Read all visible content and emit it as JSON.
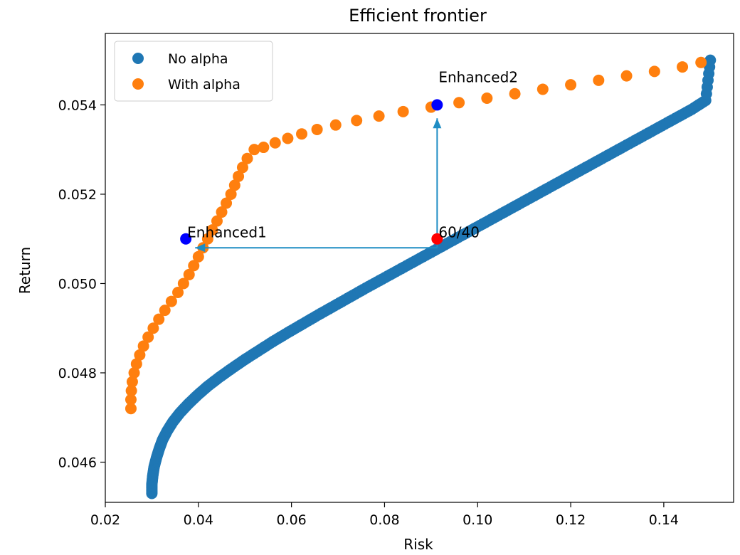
{
  "chart_data": {
    "type": "scatter",
    "title": "Efficient frontier",
    "xlabel": "Risk",
    "ylabel": "Return",
    "xlim": [
      0.02,
      0.155
    ],
    "ylim": [
      0.0451,
      0.0556
    ],
    "xticks": [
      {
        "value": 0.02,
        "label": "0.02"
      },
      {
        "value": 0.04,
        "label": "0.04"
      },
      {
        "value": 0.06,
        "label": "0.06"
      },
      {
        "value": 0.08,
        "label": "0.08"
      },
      {
        "value": 0.1,
        "label": "0.10"
      },
      {
        "value": 0.12,
        "label": "0.12"
      },
      {
        "value": 0.14,
        "label": "0.14"
      }
    ],
    "yticks": [
      {
        "value": 0.046,
        "label": "0.046"
      },
      {
        "value": 0.048,
        "label": "0.048"
      },
      {
        "value": 0.05,
        "label": "0.050"
      },
      {
        "value": 0.052,
        "label": "0.052"
      },
      {
        "value": 0.054,
        "label": "0.054"
      }
    ],
    "grid": false,
    "legend_position": "top-left",
    "series": [
      {
        "name": "No alpha",
        "color": "#1f77b4",
        "points": [
          [
            0.03,
            0.0453
          ],
          [
            0.03,
            0.0455
          ],
          [
            0.0302,
            0.0457
          ],
          [
            0.0305,
            0.0459
          ],
          [
            0.031,
            0.0461
          ],
          [
            0.0316,
            0.0463
          ],
          [
            0.0323,
            0.0465
          ],
          [
            0.0333,
            0.0467
          ],
          [
            0.0345,
            0.0469
          ],
          [
            0.036,
            0.0471
          ],
          [
            0.0378,
            0.0473
          ],
          [
            0.0398,
            0.0475
          ],
          [
            0.042,
            0.0477
          ],
          [
            0.0445,
            0.0479
          ],
          [
            0.0472,
            0.0481
          ],
          [
            0.05,
            0.0483
          ],
          [
            0.053,
            0.0485
          ],
          [
            0.056,
            0.0487
          ],
          [
            0.0592,
            0.0489
          ],
          [
            0.0625,
            0.0491
          ],
          [
            0.0658,
            0.0493
          ],
          [
            0.0692,
            0.0495
          ],
          [
            0.0726,
            0.0497
          ],
          [
            0.076,
            0.0499
          ],
          [
            0.0795,
            0.0501
          ],
          [
            0.083,
            0.0503
          ],
          [
            0.0865,
            0.0505
          ],
          [
            0.09,
            0.0507
          ],
          [
            0.0935,
            0.0509
          ],
          [
            0.097,
            0.0511
          ],
          [
            0.1005,
            0.0513
          ],
          [
            0.104,
            0.0515
          ],
          [
            0.1075,
            0.0517
          ],
          [
            0.111,
            0.0519
          ],
          [
            0.1145,
            0.0521
          ],
          [
            0.118,
            0.0523
          ],
          [
            0.1215,
            0.0525
          ],
          [
            0.125,
            0.0527
          ],
          [
            0.1285,
            0.0529
          ],
          [
            0.132,
            0.0531
          ],
          [
            0.1355,
            0.0533
          ],
          [
            0.139,
            0.0535
          ],
          [
            0.1425,
            0.0537
          ],
          [
            0.146,
            0.0539
          ],
          [
            0.149,
            0.0541
          ],
          [
            0.15,
            0.055
          ]
        ],
        "dense": true
      },
      {
        "name": "With alpha",
        "color": "#ff7f0e",
        "points": [
          [
            0.0255,
            0.0472
          ],
          [
            0.0255,
            0.0474
          ],
          [
            0.0256,
            0.0476
          ],
          [
            0.0258,
            0.0478
          ],
          [
            0.0262,
            0.048
          ],
          [
            0.0267,
            0.0482
          ],
          [
            0.0274,
            0.0484
          ],
          [
            0.0282,
            0.0486
          ],
          [
            0.0292,
            0.0488
          ],
          [
            0.0303,
            0.049
          ],
          [
            0.0315,
            0.0492
          ],
          [
            0.0328,
            0.0494
          ],
          [
            0.0342,
            0.0496
          ],
          [
            0.0356,
            0.0498
          ],
          [
            0.0368,
            0.05
          ],
          [
            0.038,
            0.0502
          ],
          [
            0.039,
            0.0504
          ],
          [
            0.04,
            0.0506
          ],
          [
            0.041,
            0.0508
          ],
          [
            0.042,
            0.051
          ],
          [
            0.043,
            0.0512
          ],
          [
            0.044,
            0.0514
          ],
          [
            0.045,
            0.0516
          ],
          [
            0.046,
            0.0518
          ],
          [
            0.047,
            0.052
          ],
          [
            0.0478,
            0.0522
          ],
          [
            0.0486,
            0.0524
          ],
          [
            0.0495,
            0.0526
          ],
          [
            0.0505,
            0.0528
          ],
          [
            0.052,
            0.053
          ],
          [
            0.054,
            0.05305
          ],
          [
            0.0565,
            0.05315
          ],
          [
            0.0592,
            0.05325
          ],
          [
            0.0622,
            0.05335
          ],
          [
            0.0655,
            0.05345
          ],
          [
            0.0695,
            0.05355
          ],
          [
            0.074,
            0.05365
          ],
          [
            0.0788,
            0.05375
          ],
          [
            0.084,
            0.05385
          ],
          [
            0.09,
            0.05395
          ],
          [
            0.096,
            0.05405
          ],
          [
            0.102,
            0.05415
          ],
          [
            0.108,
            0.05425
          ],
          [
            0.114,
            0.05435
          ],
          [
            0.12,
            0.05445
          ],
          [
            0.126,
            0.05455
          ],
          [
            0.132,
            0.05465
          ],
          [
            0.138,
            0.05475
          ],
          [
            0.144,
            0.05485
          ],
          [
            0.148,
            0.05495
          ]
        ],
        "dense": false
      }
    ],
    "highlight_points": [
      {
        "label": "Enhanced1",
        "x": 0.0373,
        "y": 0.051,
        "color": "#0000ff"
      },
      {
        "label": "Enhanced2",
        "x": 0.0913,
        "y": 0.054,
        "color": "#0000ff"
      },
      {
        "label": "60/40",
        "x": 0.0913,
        "y": 0.051,
        "color": "#ff0000"
      }
    ],
    "arrows": [
      {
        "from": [
          0.0913,
          0.0508
        ],
        "to": [
          0.0393,
          0.0508
        ],
        "color": "#1f8dc4"
      },
      {
        "from": [
          0.0913,
          0.0508
        ],
        "to": [
          0.0913,
          0.0537
        ],
        "color": "#1f8dc4"
      }
    ]
  }
}
